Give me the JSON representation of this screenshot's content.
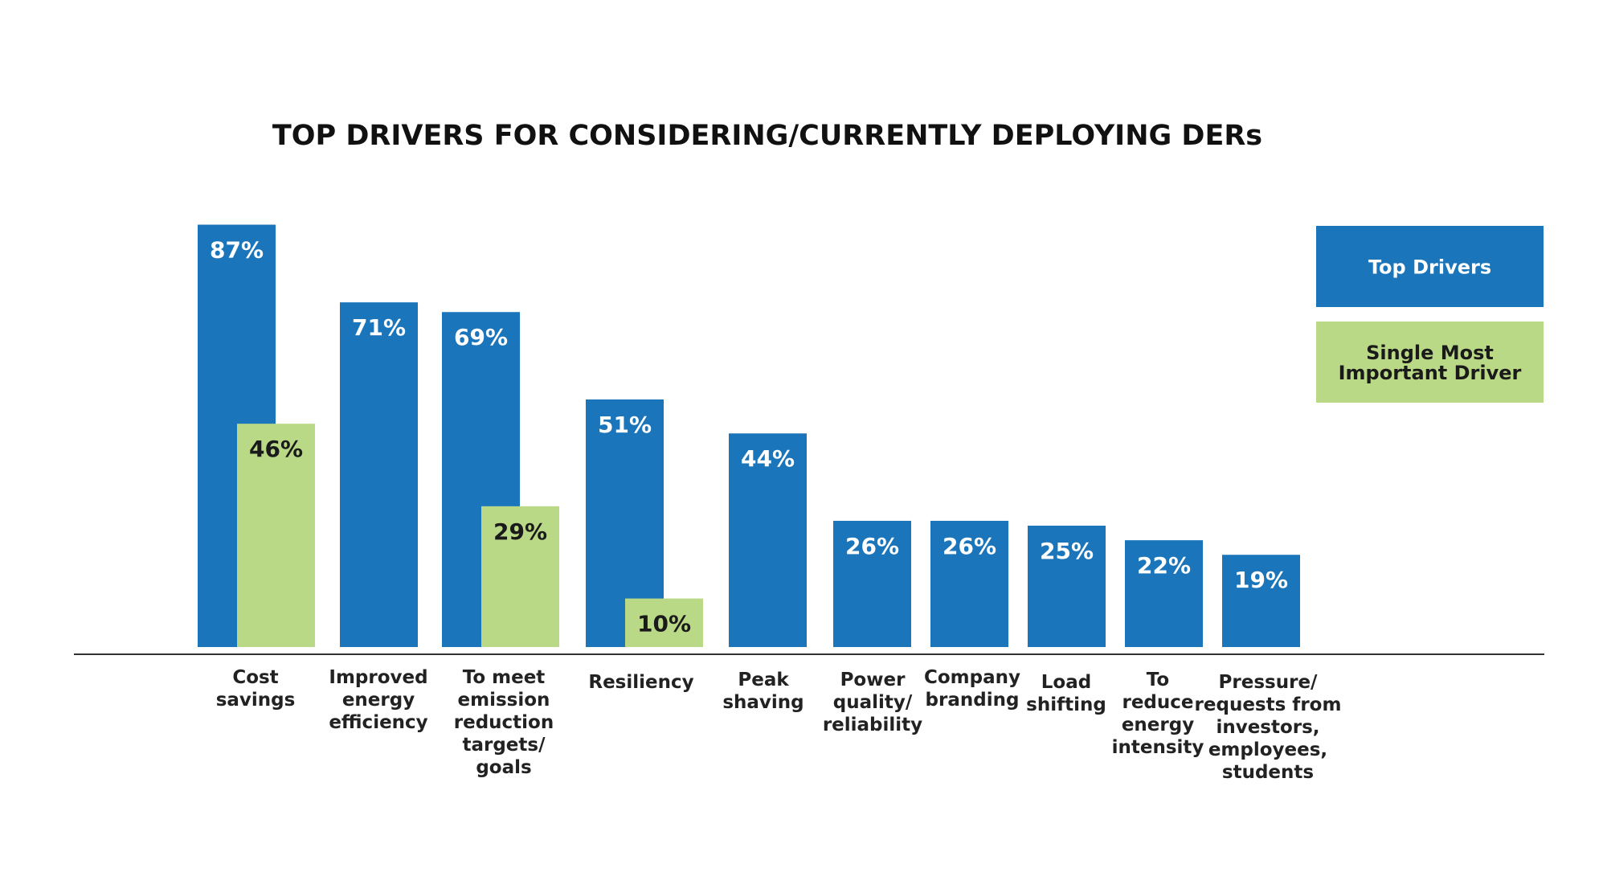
{
  "chart_data": {
    "type": "bar",
    "title": "TOP DRIVERS FOR CONSIDERING/CURRENTLY DEPLOYING DERs",
    "xlabel": "",
    "ylabel": "",
    "ylim": [
      0,
      100
    ],
    "grid": false,
    "legend_position": "top-right",
    "categories": [
      [
        "Cost",
        "savings"
      ],
      [
        "Improved",
        "energy",
        "efficiency"
      ],
      [
        "To meet",
        "emission",
        "reduction",
        "targets/",
        "goals"
      ],
      [
        "Resiliency"
      ],
      [
        "Peak",
        "shaving"
      ],
      [
        "Power",
        "quality/",
        "reliability"
      ],
      [
        "Company",
        "branding"
      ],
      [
        "Load",
        "shifting"
      ],
      [
        "To",
        "reduce",
        "energy",
        "intensity"
      ],
      [
        "Pressure/",
        "requests from",
        "investors,",
        "employees,",
        "students"
      ]
    ],
    "series": [
      {
        "name": "Top Drivers",
        "color": "#1a75bb",
        "label_color": "#ffffff",
        "values": [
          87,
          71,
          69,
          51,
          44,
          26,
          26,
          25,
          22,
          19
        ],
        "labels": [
          "87%",
          "71%",
          "69%",
          "51%",
          "44%",
          "26%",
          "26%",
          "25%",
          "22%",
          "19%"
        ]
      },
      {
        "name": "Single Most Important Driver",
        "color": "#bad987",
        "label_color": "#1a1a1a",
        "values": [
          46,
          null,
          29,
          10,
          null,
          null,
          null,
          null,
          null,
          null
        ],
        "labels": [
          "46%",
          null,
          "29%",
          "10%",
          null,
          null,
          null,
          null,
          null,
          null
        ]
      }
    ],
    "legend": [
      {
        "lines": [
          "Top Drivers"
        ],
        "color": "#1a75bb",
        "text_color": "#ffffff"
      },
      {
        "lines": [
          "Single Most",
          "Important Driver"
        ],
        "color": "#bad987",
        "text_color": "#1a1a1a"
      }
    ]
  }
}
